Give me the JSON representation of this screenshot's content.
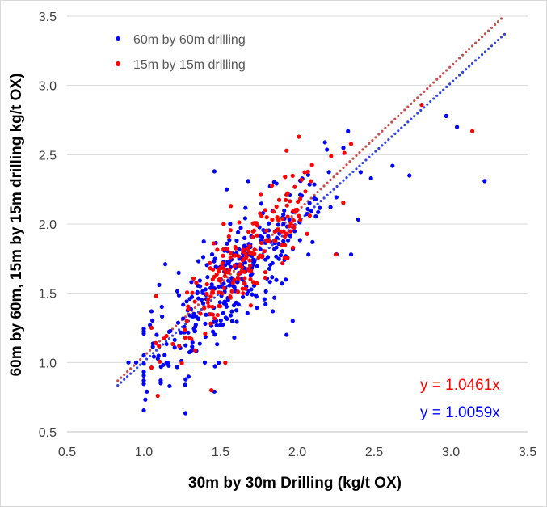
{
  "chart_data": {
    "type": "scatter",
    "title": "",
    "xlabel": "30m by 30m Drilling (kg/t OX)",
    "ylabel": "60m by 60m, 15m by 15m drilling kg/t OX)",
    "xlim": [
      0.5,
      3.5
    ],
    "ylim": [
      0.5,
      3.5
    ],
    "x_ticks": [
      "0.5",
      "1.0",
      "1.5",
      "2.0",
      "2.5",
      "3.0",
      "3.5"
    ],
    "y_ticks": [
      "0.5",
      "1.0",
      "1.5",
      "2.0",
      "2.5",
      "3.0",
      "3.5"
    ],
    "grid": "horizontal",
    "legend_position": "top-left",
    "series": [
      {
        "name": "60m by 60m drilling",
        "color": "#0000FF",
        "equation": "y = 1.0059x",
        "slope": 1.0059,
        "trendline_range": [
          0.83,
          3.37
        ],
        "cluster": {
          "n": 330,
          "x_center": 1.58,
          "x_sd": 0.3,
          "noise_sd": 0.19,
          "x_min": 1.0,
          "x_max": 2.45
        },
        "points": [
          [
            1.02,
            0.79
          ],
          [
            1.46,
            0.79
          ],
          [
            1.11,
            0.87
          ],
          [
            0.9,
            1.0
          ],
          [
            0.95,
            1.0
          ],
          [
            2.62,
            2.42
          ],
          [
            2.73,
            2.35
          ],
          [
            2.97,
            2.78
          ],
          [
            3.04,
            2.7
          ],
          [
            3.22,
            2.31
          ],
          [
            2.18,
            2.59
          ],
          [
            2.33,
            2.67
          ],
          [
            2.3,
            2.55
          ],
          [
            2.48,
            2.33
          ],
          [
            2.35,
            1.78
          ],
          [
            1.93,
            1.2
          ],
          [
            1.97,
            1.3
          ],
          [
            1.84,
            1.37
          ],
          [
            1.68,
            2.31
          ],
          [
            1.46,
            2.38
          ],
          [
            1.54,
            2.25
          ],
          [
            1.14,
            1.71
          ],
          [
            1.1,
            1.56
          ],
          [
            1.05,
            1.37
          ],
          [
            1.9,
            1.57
          ]
        ]
      },
      {
        "name": "15m by 15m drilling",
        "color": "#FF0000",
        "equation": "y = 1.0461x",
        "slope": 1.0461,
        "trendline_range": [
          0.83,
          3.37
        ],
        "cluster": {
          "n": 210,
          "x_center": 1.68,
          "x_sd": 0.26,
          "noise_sd": 0.15,
          "x_min": 1.05,
          "x_max": 2.35
        },
        "points": [
          [
            1.44,
            0.8
          ],
          [
            3.14,
            2.67
          ],
          [
            2.81,
            2.86
          ],
          [
            2.01,
            2.63
          ],
          [
            1.93,
            2.53
          ],
          [
            1.08,
            1.48
          ],
          [
            1.23,
            1.12
          ],
          [
            1.52,
            2.0
          ],
          [
            2.25,
            1.78
          ],
          [
            1.92,
            2.34
          ],
          [
            1.28,
            1.3
          ],
          [
            2.22,
            2.49
          ]
        ]
      }
    ]
  }
}
